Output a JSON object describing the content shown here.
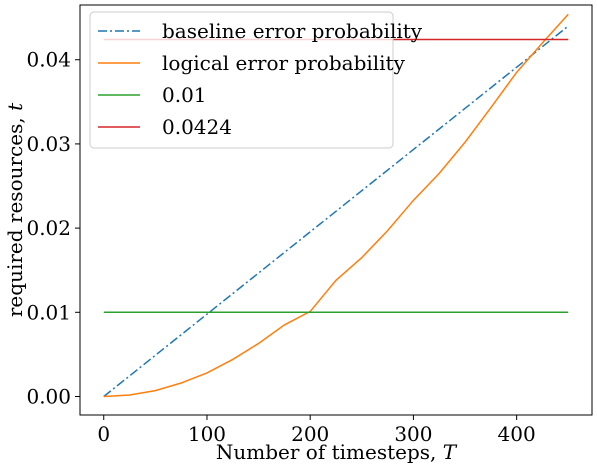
{
  "chart_data": {
    "type": "line",
    "xlabel_text": "Number of timesteps, ",
    "xlabel_var": "T",
    "ylabel_text": "required resources, ",
    "ylabel_var": "t",
    "xlim": [
      -23,
      473
    ],
    "ylim": [
      -0.0022,
      0.0465
    ],
    "x_ticks": [
      0,
      100,
      200,
      300,
      400
    ],
    "x_tick_labels": [
      "0",
      "100",
      "200",
      "300",
      "400"
    ],
    "y_ticks": [
      0.0,
      0.01,
      0.02,
      0.03,
      0.04
    ],
    "y_tick_labels": [
      "0.00",
      "0.01",
      "0.02",
      "0.03",
      "0.04"
    ],
    "grid": false,
    "legend_position": "top-left",
    "series": [
      {
        "name": "baseline error probability",
        "color": "#1f77b4",
        "dash": "dashdot",
        "x": [
          0,
          450
        ],
        "y": [
          0.0,
          0.044
        ]
      },
      {
        "name": "logical error probability",
        "color": "#ff7f0e",
        "dash": "solid",
        "x": [
          0,
          25,
          50,
          75,
          100,
          125,
          150,
          175,
          200,
          225,
          250,
          275,
          300,
          325,
          350,
          375,
          400,
          425,
          450
        ],
        "y": [
          0.0,
          0.00017,
          0.0007,
          0.0016,
          0.0028,
          0.0044,
          0.0063,
          0.0085,
          0.0101,
          0.0138,
          0.0165,
          0.0197,
          0.0233,
          0.0265,
          0.0302,
          0.0343,
          0.0385,
          0.042,
          0.0454
        ]
      },
      {
        "name": "0.01",
        "color": "#2ca02c",
        "dash": "solid",
        "x": [
          0,
          450
        ],
        "y": [
          0.01,
          0.01
        ]
      },
      {
        "name": "0.0424",
        "color": "#d62728",
        "dash": "solid",
        "x": [
          0,
          450
        ],
        "y": [
          0.0424,
          0.0424
        ]
      }
    ]
  }
}
